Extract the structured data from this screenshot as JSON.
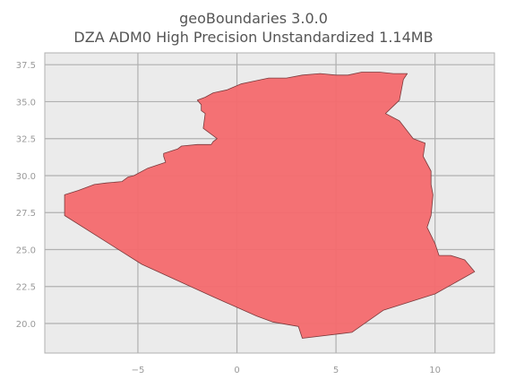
{
  "title": "geoBoundaries 3.0.0",
  "subtitle": "DZA ADM0 High Precision Unstandardized 1.14MB",
  "colors": {
    "fill": "#f46a6e",
    "stroke": "#7a3a3c",
    "panel": "#ebebeb",
    "grid": "#b0b0b0",
    "text": "#555555",
    "tick": "#9a9a9a"
  },
  "chart_data": {
    "type": "map",
    "title": "geoBoundaries 3.0.0",
    "subtitle": "DZA ADM0 High Precision Unstandardized 1.14MB",
    "xlabel": "",
    "ylabel": "",
    "xlim": [
      -9.7,
      13.0
    ],
    "ylim": [
      18.0,
      38.3
    ],
    "x_ticks": [
      -5,
      0,
      5,
      10
    ],
    "x_tick_labels": [
      "−5",
      "0",
      "5",
      "10"
    ],
    "y_ticks": [
      20.0,
      22.5,
      25.0,
      27.5,
      30.0,
      32.5,
      35.0,
      37.5
    ],
    "y_tick_labels": [
      "20.0",
      "22.5",
      "25.0",
      "27.5",
      "30.0",
      "32.5",
      "35.0",
      "37.5"
    ],
    "grid": true,
    "series": [
      {
        "name": "DZA",
        "points": [
          [
            -8.7,
            27.3
          ],
          [
            -8.7,
            28.7
          ],
          [
            -8.0,
            29.0
          ],
          [
            -7.2,
            29.4
          ],
          [
            -6.6,
            29.5
          ],
          [
            -5.8,
            29.6
          ],
          [
            -5.5,
            29.9
          ],
          [
            -5.2,
            30.0
          ],
          [
            -4.5,
            30.5
          ],
          [
            -3.6,
            30.9
          ],
          [
            -3.7,
            31.3
          ],
          [
            -3.7,
            31.5
          ],
          [
            -3.0,
            31.8
          ],
          [
            -2.8,
            32.0
          ],
          [
            -2.0,
            32.1
          ],
          [
            -1.3,
            32.1
          ],
          [
            -1.2,
            32.3
          ],
          [
            -1.0,
            32.5
          ],
          [
            -1.7,
            33.2
          ],
          [
            -1.6,
            34.2
          ],
          [
            -1.8,
            34.4
          ],
          [
            -1.8,
            34.8
          ],
          [
            -2.0,
            35.1
          ],
          [
            -1.6,
            35.3
          ],
          [
            -1.2,
            35.6
          ],
          [
            -0.5,
            35.8
          ],
          [
            0.2,
            36.2
          ],
          [
            0.9,
            36.4
          ],
          [
            1.6,
            36.6
          ],
          [
            2.5,
            36.6
          ],
          [
            3.3,
            36.8
          ],
          [
            4.2,
            36.9
          ],
          [
            5.0,
            36.8
          ],
          [
            5.6,
            36.8
          ],
          [
            6.3,
            37.0
          ],
          [
            7.2,
            37.0
          ],
          [
            7.9,
            36.9
          ],
          [
            8.6,
            36.9
          ],
          [
            8.4,
            36.5
          ],
          [
            8.3,
            35.8
          ],
          [
            8.2,
            35.1
          ],
          [
            7.5,
            34.2
          ],
          [
            8.2,
            33.7
          ],
          [
            8.9,
            32.5
          ],
          [
            9.5,
            32.2
          ],
          [
            9.4,
            31.3
          ],
          [
            9.8,
            30.3
          ],
          [
            9.8,
            29.4
          ],
          [
            9.9,
            28.7
          ],
          [
            9.8,
            27.3
          ],
          [
            9.6,
            26.5
          ],
          [
            10.0,
            25.4
          ],
          [
            10.2,
            24.6
          ],
          [
            10.8,
            24.6
          ],
          [
            11.5,
            24.3
          ],
          [
            12.0,
            23.5
          ],
          [
            10.0,
            22.0
          ],
          [
            7.4,
            20.9
          ],
          [
            5.8,
            19.4
          ],
          [
            3.3,
            19.0
          ],
          [
            3.1,
            19.8
          ],
          [
            1.8,
            20.1
          ],
          [
            1.0,
            20.5
          ],
          [
            -1.2,
            21.8
          ],
          [
            -4.8,
            24.0
          ],
          [
            -8.7,
            27.3
          ]
        ]
      }
    ]
  }
}
